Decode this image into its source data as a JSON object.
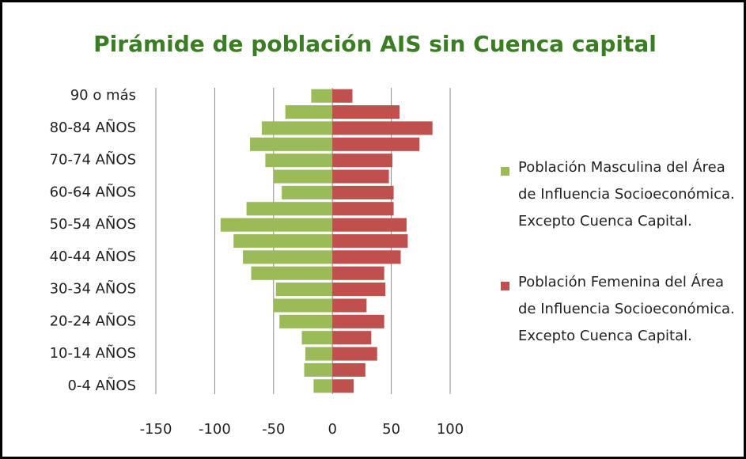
{
  "chart_data": {
    "type": "bar",
    "orientation": "horizontal",
    "title": "Pirámide de población AIS sin Cuenca capital",
    "categories": [
      "0-4 AÑOS",
      null,
      "10-14 AÑOS",
      null,
      "20-24 AÑOS",
      null,
      "30-34 AÑOS",
      null,
      "40-44 AÑOS",
      null,
      "50-54 AÑOS",
      null,
      "60-64 AÑOS",
      null,
      "70-74 AÑOS",
      null,
      "80-84 AÑOS",
      null,
      "90 o más"
    ],
    "series": [
      {
        "name": "Población Masculina del Área de Influencia Socioeconómica. Excepto Cuenca Capital.",
        "color": "#9bbb59",
        "values": [
          -16,
          -24,
          -23,
          -26,
          -45,
          -50,
          -48,
          -69,
          -76,
          -84,
          -95,
          -73,
          -43,
          -50,
          -57,
          -70,
          -60,
          -40,
          -18
        ]
      },
      {
        "name": "Población Femenina del Área de Influencia Socioeconómica. Excepto Cuenca Capital.",
        "color": "#c0504d",
        "values": [
          18,
          28,
          38,
          33,
          44,
          29,
          45,
          44,
          58,
          64,
          63,
          52,
          52,
          48,
          51,
          74,
          85,
          57,
          17
        ]
      }
    ],
    "xlim": [
      -150,
      100
    ],
    "xticks": [
      -150,
      -100,
      -50,
      0,
      50,
      100
    ],
    "grid": true,
    "legend": "right"
  }
}
